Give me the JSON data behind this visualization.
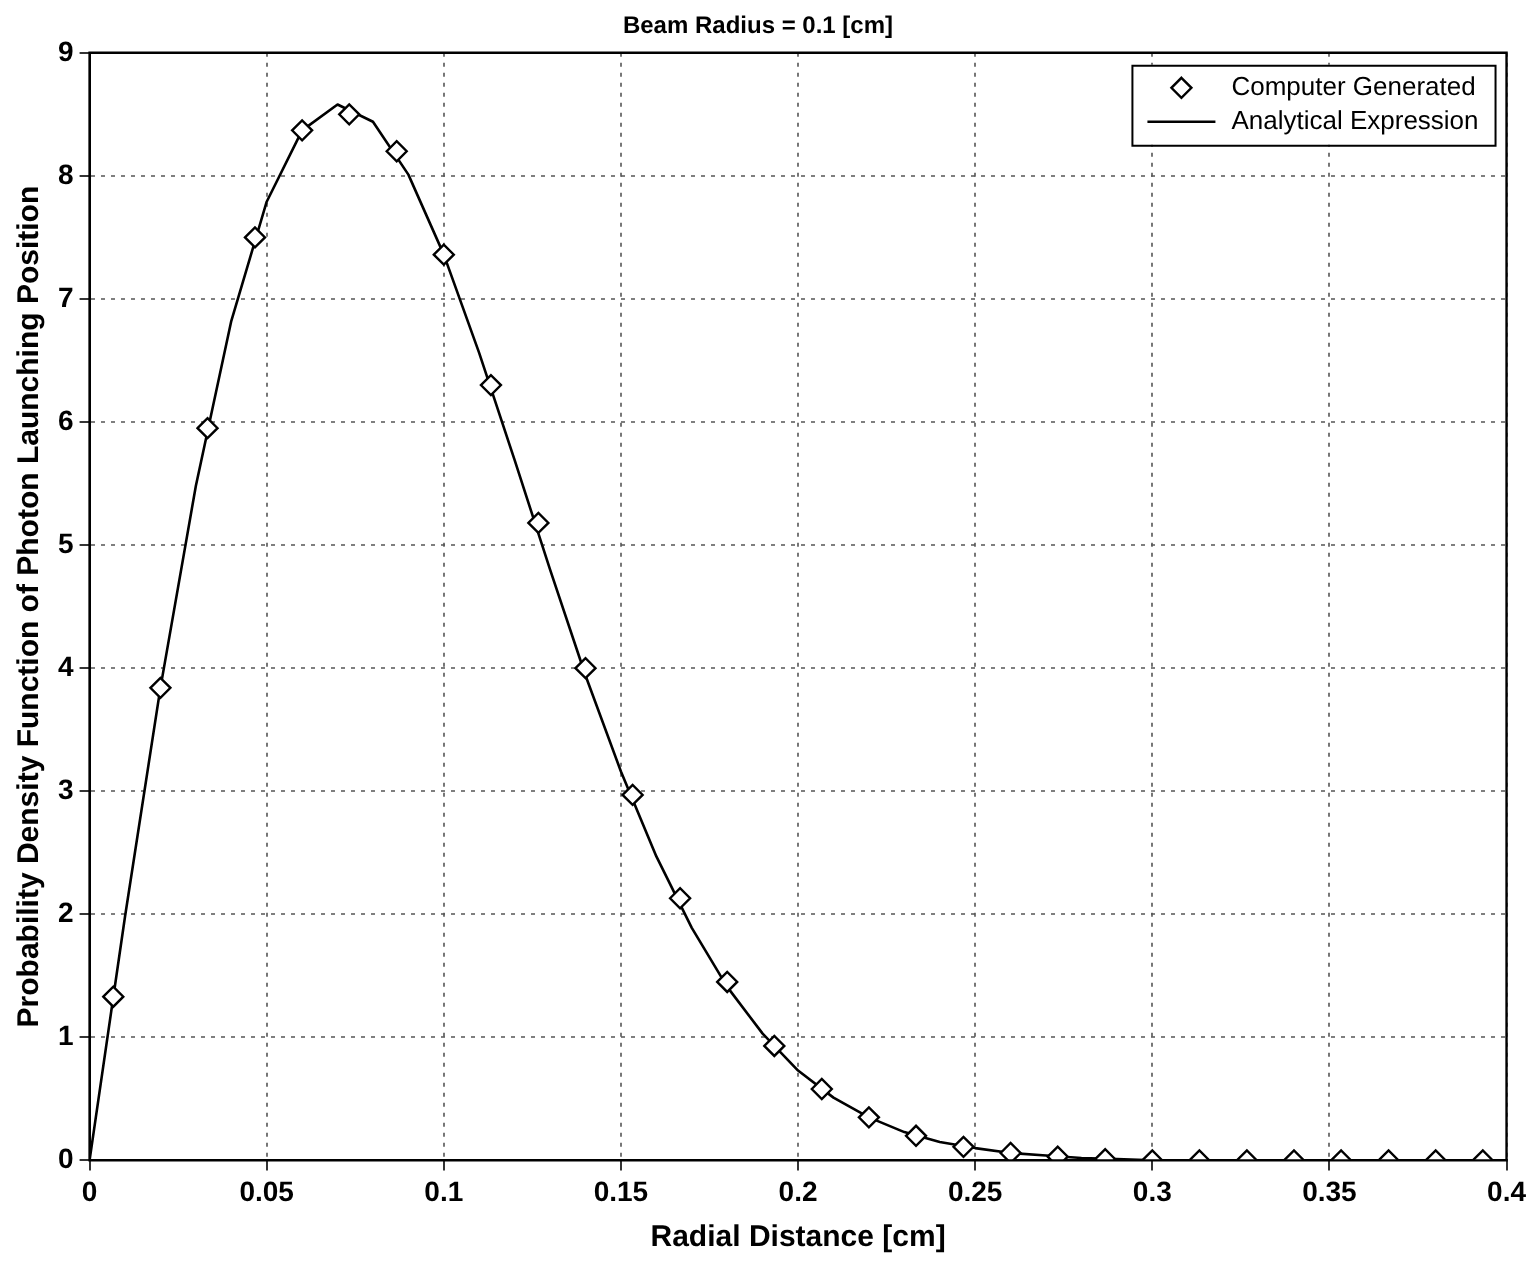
{
  "chart_data": {
    "type": "scatter",
    "title": "Beam Radius = 0.1 [cm]",
    "xlabel": "Radial Distance [cm]",
    "ylabel": "Probability Density Function of Photon Launching Position",
    "xlim": [
      0,
      0.4
    ],
    "xticks": [
      0,
      0.05,
      0.1,
      0.15,
      0.2,
      0.25,
      0.3,
      0.35,
      0.4
    ],
    "ylim": [
      0,
      9
    ],
    "yticks": [
      0,
      1,
      2,
      3,
      4,
      5,
      6,
      7,
      8,
      9
    ],
    "grid": true,
    "legend": "top right",
    "series": [
      {
        "name": "Computer Generated",
        "type": "scatter",
        "marker": "diamond",
        "color": "#000000",
        "x": [
          0.0067,
          0.02,
          0.0333,
          0.0467,
          0.06,
          0.0733,
          0.0867,
          0.1,
          0.1133,
          0.1267,
          0.14,
          0.1533,
          0.1667,
          0.18,
          0.1933,
          0.2067,
          0.22,
          0.2333,
          0.2467,
          0.26,
          0.2733,
          0.2867,
          0.3,
          0.3133,
          0.3267,
          0.34,
          0.3533,
          0.3667,
          0.38,
          0.3933
        ],
        "values": [
          1.33,
          3.84,
          5.95,
          7.5,
          8.37,
          8.5,
          8.2,
          7.36,
          6.3,
          5.18,
          4.0,
          2.97,
          2.13,
          1.45,
          0.93,
          0.58,
          0.35,
          0.2,
          0.11,
          0.06,
          0.03,
          0.01,
          0,
          0,
          0,
          0,
          0,
          0,
          0,
          0
        ]
      },
      {
        "name": "Analytical Expression",
        "type": "line",
        "marker": "none",
        "line_style": "solid",
        "color": "#000000",
        "x": [
          0,
          0.01,
          0.02,
          0.03,
          0.04,
          0.05,
          0.06,
          0.07,
          0.08,
          0.09,
          0.1,
          0.11,
          0.12,
          0.13,
          0.14,
          0.15,
          0.16,
          0.17,
          0.18,
          0.19,
          0.2,
          0.21,
          0.22,
          0.23,
          0.24,
          0.25,
          0.26,
          0.27,
          0.28,
          0.29,
          0.3,
          0.32,
          0.34,
          0.36,
          0.38,
          0.4
        ],
        "values": [
          0,
          1.98,
          3.84,
          5.48,
          6.82,
          7.79,
          8.37,
          8.58,
          8.44,
          8.01,
          7.36,
          6.56,
          5.69,
          4.8,
          3.94,
          3.16,
          2.47,
          1.89,
          1.41,
          1.03,
          0.73,
          0.51,
          0.35,
          0.23,
          0.15,
          0.1,
          0.06,
          0.04,
          0.02,
          0.01,
          0,
          0,
          0,
          0,
          0,
          0
        ]
      }
    ]
  }
}
